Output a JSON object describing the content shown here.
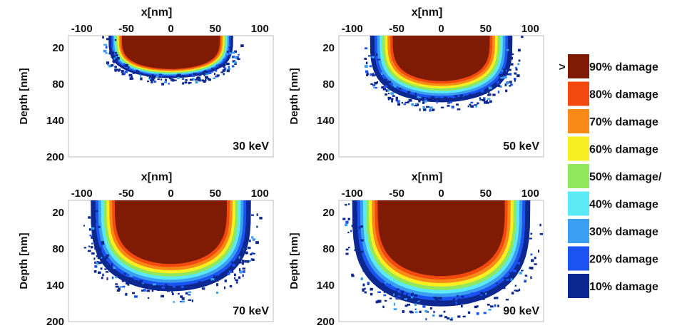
{
  "chart_data": [
    {
      "type": "heatmap",
      "xlabel": "x[nm]",
      "ylabel": "Depth [nm]",
      "x_ticks": [
        -100,
        -50,
        0,
        50,
        100
      ],
      "y_ticks": [
        20,
        80,
        140,
        200
      ],
      "xlim": [
        -115,
        115
      ],
      "ylim": [
        200,
        0
      ],
      "annotation": "30 keV",
      "damage_region": {
        "x_extent": [
          -70,
          70
        ],
        "depth_extent": [
          0,
          70
        ],
        "core_depth": 55
      }
    },
    {
      "type": "heatmap",
      "xlabel": "x[nm]",
      "ylabel": "Depth [nm]",
      "x_ticks": [
        -100,
        -50,
        0,
        50,
        100
      ],
      "y_ticks": [
        20,
        80,
        140,
        200
      ],
      "xlim": [
        -115,
        115
      ],
      "ylim": [
        200,
        0
      ],
      "annotation": "50 keV",
      "damage_region": {
        "x_extent": [
          -80,
          80
        ],
        "depth_extent": [
          0,
          110
        ],
        "core_depth": 75
      }
    },
    {
      "type": "heatmap",
      "xlabel": "x[nm]",
      "ylabel": "Depth [nm]",
      "x_ticks": [
        -100,
        -50,
        0,
        50,
        100
      ],
      "y_ticks": [
        20,
        80,
        140,
        200
      ],
      "xlim": [
        -115,
        115
      ],
      "ylim": [
        200,
        0
      ],
      "annotation": "70 keV",
      "damage_region": {
        "x_extent": [
          -90,
          90
        ],
        "depth_extent": [
          0,
          150
        ],
        "core_depth": 105
      }
    },
    {
      "type": "heatmap",
      "xlabel": "x[nm]",
      "ylabel": "Depth [nm]",
      "x_ticks": [
        -100,
        -50,
        0,
        50,
        100
      ],
      "y_ticks": [
        20,
        80,
        140,
        200
      ],
      "xlim": [
        -115,
        115
      ],
      "ylim": [
        200,
        0
      ],
      "annotation": "90 keV",
      "damage_region": {
        "x_extent": [
          -100,
          100
        ],
        "depth_extent": [
          0,
          175
        ],
        "core_depth": 125
      }
    }
  ],
  "legend": {
    "marker": ">",
    "items": [
      {
        "label": "90% damage",
        "color": "#7f1a05"
      },
      {
        "label": "80% damage",
        "color": "#f24a0e"
      },
      {
        "label": "70% damage",
        "color": "#f98a18"
      },
      {
        "label": "60% damage",
        "color": "#f7ef22"
      },
      {
        "label": "50% damage/",
        "color": "#92e85d"
      },
      {
        "label": "40% damage",
        "color": "#5ae9f5"
      },
      {
        "label": "30% damage",
        "color": "#3a9ff0"
      },
      {
        "label": "20% damage",
        "color": "#1b53f3"
      },
      {
        "label": "10% damage",
        "color": "#0c2890"
      }
    ]
  }
}
